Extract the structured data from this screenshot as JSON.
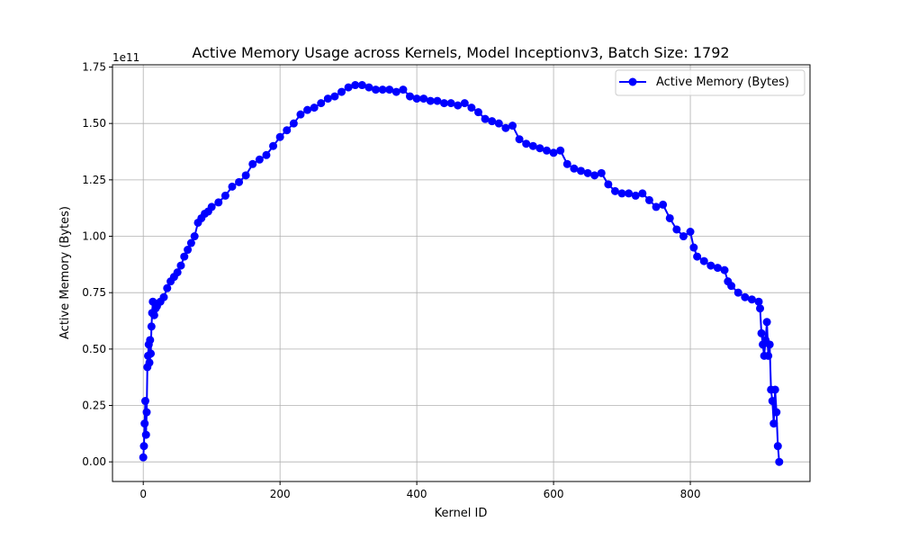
{
  "chart_data": {
    "type": "line",
    "title": "Active Memory Usage across Kernels, Model Inceptionv3, Batch Size: 1792",
    "xlabel": "Kernel ID",
    "ylabel": "Active Memory (Bytes)",
    "y_offset_label": "1e11",
    "y_scale": 100000000000.0,
    "xlim": [
      -45,
      975
    ],
    "ylim": [
      -0.087,
      1.76
    ],
    "xticks": [
      0,
      200,
      400,
      600,
      800
    ],
    "xtick_labels": [
      "0",
      "200",
      "400",
      "600",
      "800"
    ],
    "yticks": [
      0,
      0.25,
      0.5,
      0.75,
      1.0,
      1.25,
      1.5,
      1.75
    ],
    "ytick_labels": [
      "0.00",
      "0.25",
      "0.50",
      "0.75",
      "1.00",
      "1.25",
      "1.50",
      "1.75"
    ],
    "grid": true,
    "legend_position": "top-right",
    "series": [
      {
        "name": "Active Memory (Bytes)",
        "color": "#0000ff",
        "marker": "circle",
        "x": [
          0,
          1,
          2,
          3,
          4,
          5,
          6,
          7,
          8,
          9,
          10,
          11,
          12,
          13,
          14,
          16,
          18,
          20,
          25,
          30,
          35,
          40,
          45,
          50,
          55,
          60,
          65,
          70,
          75,
          80,
          85,
          90,
          95,
          100,
          110,
          120,
          130,
          140,
          150,
          160,
          170,
          180,
          190,
          200,
          210,
          220,
          230,
          240,
          250,
          260,
          270,
          280,
          290,
          300,
          310,
          320,
          330,
          340,
          350,
          360,
          370,
          380,
          390,
          400,
          410,
          420,
          430,
          440,
          450,
          460,
          470,
          480,
          490,
          500,
          510,
          520,
          530,
          540,
          550,
          560,
          570,
          580,
          590,
          600,
          610,
          620,
          630,
          640,
          650,
          660,
          670,
          680,
          690,
          700,
          710,
          720,
          730,
          740,
          750,
          760,
          770,
          780,
          790,
          800,
          805,
          810,
          820,
          830,
          840,
          850,
          855,
          860,
          870,
          880,
          890,
          900,
          902,
          904,
          906,
          908,
          910,
          912,
          914,
          916,
          918,
          920,
          922,
          924,
          926,
          928,
          930
        ],
        "values": [
          0.02,
          0.07,
          0.17,
          0.27,
          0.12,
          0.22,
          0.42,
          0.47,
          0.52,
          0.44,
          0.54,
          0.48,
          0.6,
          0.66,
          0.71,
          0.65,
          0.68,
          0.69,
          0.71,
          0.73,
          0.77,
          0.8,
          0.82,
          0.84,
          0.87,
          0.91,
          0.94,
          0.97,
          1.0,
          1.06,
          1.08,
          1.1,
          1.11,
          1.13,
          1.15,
          1.18,
          1.22,
          1.24,
          1.27,
          1.32,
          1.34,
          1.36,
          1.4,
          1.44,
          1.47,
          1.5,
          1.54,
          1.56,
          1.57,
          1.59,
          1.61,
          1.62,
          1.64,
          1.66,
          1.67,
          1.67,
          1.66,
          1.65,
          1.65,
          1.65,
          1.64,
          1.65,
          1.62,
          1.61,
          1.61,
          1.6,
          1.6,
          1.59,
          1.59,
          1.58,
          1.59,
          1.57,
          1.55,
          1.52,
          1.51,
          1.5,
          1.48,
          1.49,
          1.43,
          1.41,
          1.4,
          1.39,
          1.38,
          1.37,
          1.38,
          1.32,
          1.3,
          1.29,
          1.28,
          1.27,
          1.28,
          1.23,
          1.2,
          1.19,
          1.19,
          1.18,
          1.19,
          1.16,
          1.13,
          1.14,
          1.08,
          1.03,
          1.0,
          1.02,
          0.95,
          0.91,
          0.89,
          0.87,
          0.86,
          0.85,
          0.8,
          0.78,
          0.75,
          0.73,
          0.72,
          0.71,
          0.68,
          0.57,
          0.52,
          0.47,
          0.54,
          0.62,
          0.47,
          0.52,
          0.32,
          0.27,
          0.17,
          0.32,
          0.22,
          0.07,
          0.0
        ]
      }
    ]
  }
}
